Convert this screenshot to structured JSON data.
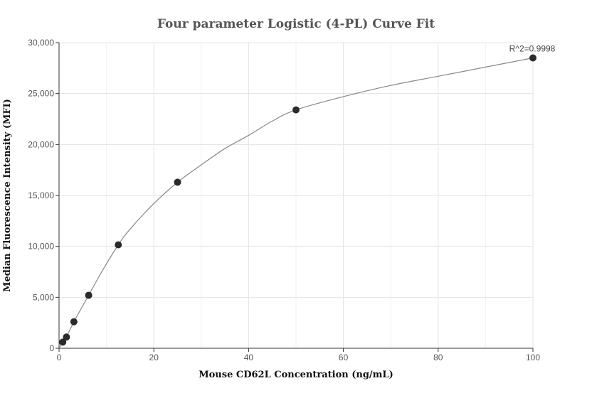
{
  "chart_data": {
    "type": "scatter",
    "title": "Four parameter Logistic (4-PL) Curve Fit",
    "xlabel": "Mouse CD62L Concentration (ng/mL)",
    "ylabel": "Median Fluorescence Intensity (MFI)",
    "xlim": [
      0,
      100
    ],
    "ylim": [
      0,
      30000
    ],
    "x_ticks": [
      0,
      20,
      40,
      60,
      80,
      100
    ],
    "y_ticks": [
      0,
      5000,
      10000,
      15000,
      20000,
      25000,
      30000
    ],
    "x_tick_labels": [
      "0",
      "20",
      "40",
      "60",
      "80",
      "100"
    ],
    "y_tick_labels": [
      "0",
      "5,000",
      "10,000",
      "15,000",
      "20,000",
      "25,000",
      "30,000"
    ],
    "grid": true,
    "points": [
      {
        "x": 0.78,
        "y": 600
      },
      {
        "x": 1.56,
        "y": 1100
      },
      {
        "x": 3.13,
        "y": 2600
      },
      {
        "x": 6.25,
        "y": 5200
      },
      {
        "x": 12.5,
        "y": 10150
      },
      {
        "x": 25,
        "y": 16300
      },
      {
        "x": 50,
        "y": 23400
      },
      {
        "x": 100,
        "y": 28500
      }
    ],
    "fit_curve": [
      {
        "x": 0,
        "y": 0
      },
      {
        "x": 0.78,
        "y": 600
      },
      {
        "x": 1.56,
        "y": 1100
      },
      {
        "x": 3.13,
        "y": 2600
      },
      {
        "x": 6.25,
        "y": 5200
      },
      {
        "x": 9,
        "y": 7500
      },
      {
        "x": 12.5,
        "y": 10150
      },
      {
        "x": 15,
        "y": 11700
      },
      {
        "x": 20,
        "y": 14200
      },
      {
        "x": 25,
        "y": 16300
      },
      {
        "x": 30,
        "y": 18000
      },
      {
        "x": 35,
        "y": 19600
      },
      {
        "x": 40,
        "y": 20900
      },
      {
        "x": 45,
        "y": 22300
      },
      {
        "x": 50,
        "y": 23400
      },
      {
        "x": 60,
        "y": 24700
      },
      {
        "x": 70,
        "y": 25800
      },
      {
        "x": 80,
        "y": 26700
      },
      {
        "x": 90,
        "y": 27600
      },
      {
        "x": 100,
        "y": 28500
      }
    ],
    "annotation": "R^2=0.9998"
  },
  "colors": {
    "point": "#2b2b2b",
    "fit_line": "#888888",
    "grid": "#e3e3e3",
    "title": "#555555"
  }
}
